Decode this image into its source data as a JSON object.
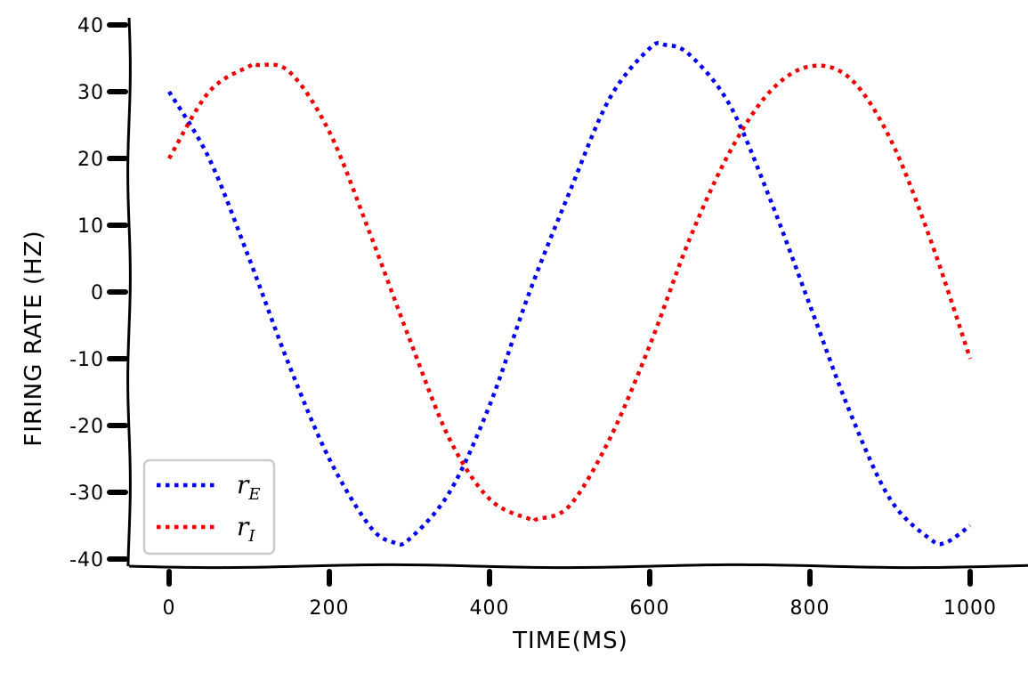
{
  "chart_data": {
    "type": "line",
    "title": "",
    "xlabel": "TIME(MS)",
    "ylabel": "FIRING RATE (HZ)",
    "xlim": [
      -25,
      1050
    ],
    "ylim": [
      -40,
      40
    ],
    "xticks": [
      0,
      200,
      400,
      600,
      800,
      1000
    ],
    "xtick_labels": [
      "0",
      "200",
      "400",
      "600",
      "800",
      "1000"
    ],
    "yticks": [
      -40,
      -30,
      -20,
      -10,
      0,
      10,
      20,
      30,
      40
    ],
    "ytick_labels": [
      "-40",
      "-30",
      "-20",
      "-10",
      "0",
      "10",
      "20",
      "30",
      "40"
    ],
    "grid": false,
    "legend_position": "lower-left",
    "legend": [
      {
        "main": "r",
        "sub": "E",
        "color": "#0000ee"
      },
      {
        "main": "r",
        "sub": "I",
        "color": "#ee0000"
      }
    ],
    "series": [
      {
        "name": "r_E",
        "color": "#0000ee",
        "style": "dotted",
        "x": [
          0,
          50,
          100,
          150,
          200,
          250,
          280,
          300,
          350,
          400,
          450,
          500,
          550,
          600,
          620,
          650,
          700,
          750,
          800,
          850,
          900,
          950,
          970,
          1000
        ],
        "y": [
          30,
          20,
          5,
          -11,
          -25,
          -35,
          -37.5,
          -37,
          -30,
          -17,
          0,
          15,
          29,
          36.5,
          37,
          35.5,
          28,
          14,
          -2,
          -18,
          -31,
          -37,
          -37.5,
          -35
        ]
      },
      {
        "name": "r_I",
        "color": "#ee0000",
        "style": "dotted",
        "x": [
          0,
          50,
          100,
          110,
          150,
          200,
          250,
          300,
          350,
          400,
          450,
          460,
          500,
          550,
          600,
          650,
          700,
          750,
          800,
          850,
          900,
          950,
          1000
        ],
        "y": [
          20,
          30,
          33.8,
          34,
          33,
          24,
          9,
          -7,
          -22,
          -31,
          -34,
          -34,
          -32,
          -22,
          -8,
          8,
          21,
          30,
          33.8,
          32,
          23,
          8,
          -10
        ]
      }
    ]
  }
}
